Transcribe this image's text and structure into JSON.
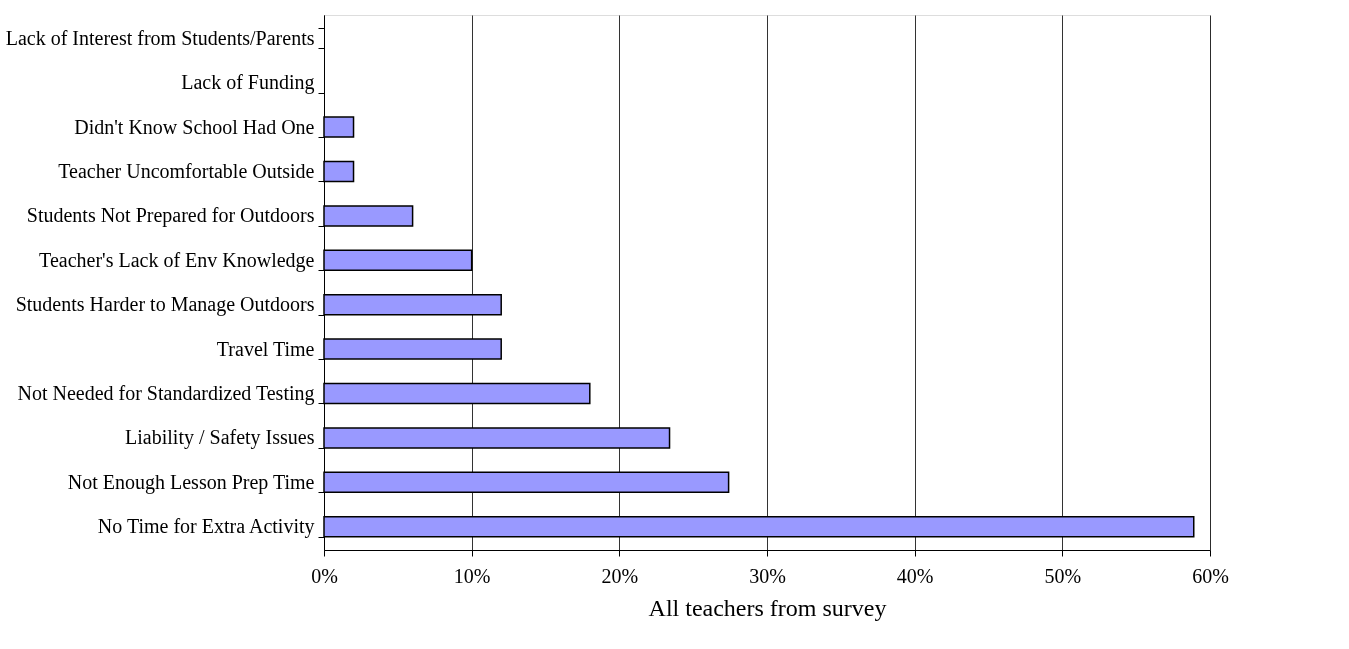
{
  "chart_data": {
    "type": "bar",
    "orientation": "horizontal",
    "xlabel": "All teachers from survey",
    "categories": [
      "Lack of Interest from Students/Parents",
      "Lack of Funding",
      "Didn't Know School Had One",
      "Teacher Uncomfortable Outside",
      "Students Not Prepared for Outdoors",
      "Teacher's Lack of Env Knowledge",
      "Students Harder to Manage Outdoors",
      "Travel Time",
      "Not Needed for Standardized Testing",
      "Liability / Safety Issues",
      "Not Enough Lesson Prep Time",
      "No Time for Extra Activity"
    ],
    "values": [
      0,
      0,
      2,
      2,
      6,
      10,
      12,
      12,
      18,
      23.4,
      27.4,
      58.9
    ],
    "color": "#9999ff",
    "xlim": [
      0,
      60
    ],
    "xticks": [
      {
        "value": 0,
        "label": "0%"
      },
      {
        "value": 10,
        "label": "10%"
      },
      {
        "value": 20,
        "label": "20%"
      },
      {
        "value": 30,
        "label": "30%"
      },
      {
        "value": 40,
        "label": "40%"
      },
      {
        "value": 50,
        "label": "50%"
      },
      {
        "value": 60,
        "label": "60%"
      }
    ],
    "grid": "x"
  }
}
